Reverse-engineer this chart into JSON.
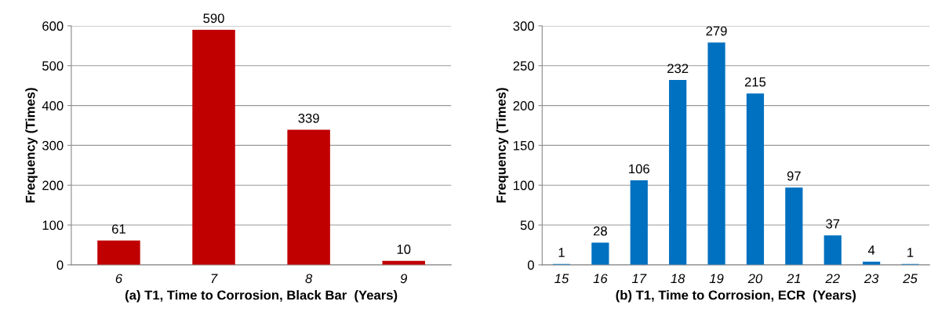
{
  "chart_data": [
    {
      "type": "bar",
      "xlabel": "(a) T1, Time to Corrosion, Black Bar  (Years)",
      "ylabel": "Frequency (Times)",
      "categories": [
        "6",
        "7",
        "8",
        "9"
      ],
      "values": [
        61,
        590,
        339,
        10
      ],
      "color": "#c00000",
      "ylim": [
        0,
        600
      ],
      "yticks": [
        0,
        100,
        200,
        300,
        400,
        500,
        600
      ],
      "grid": "y",
      "data_labels": true
    },
    {
      "type": "bar",
      "xlabel": "(b) T1, Time to Corrosion, ECR  (Years)",
      "ylabel": "Frequency (Times)",
      "categories": [
        "15",
        "16",
        "17",
        "18",
        "19",
        "20",
        "21",
        "22",
        "23",
        "25"
      ],
      "values": [
        1,
        28,
        106,
        232,
        279,
        215,
        97,
        37,
        4,
        1
      ],
      "color": "#0070c0",
      "ylim": [
        0,
        300
      ],
      "yticks": [
        0,
        50,
        100,
        150,
        200,
        250,
        300
      ],
      "grid": "y",
      "data_labels": true
    }
  ]
}
